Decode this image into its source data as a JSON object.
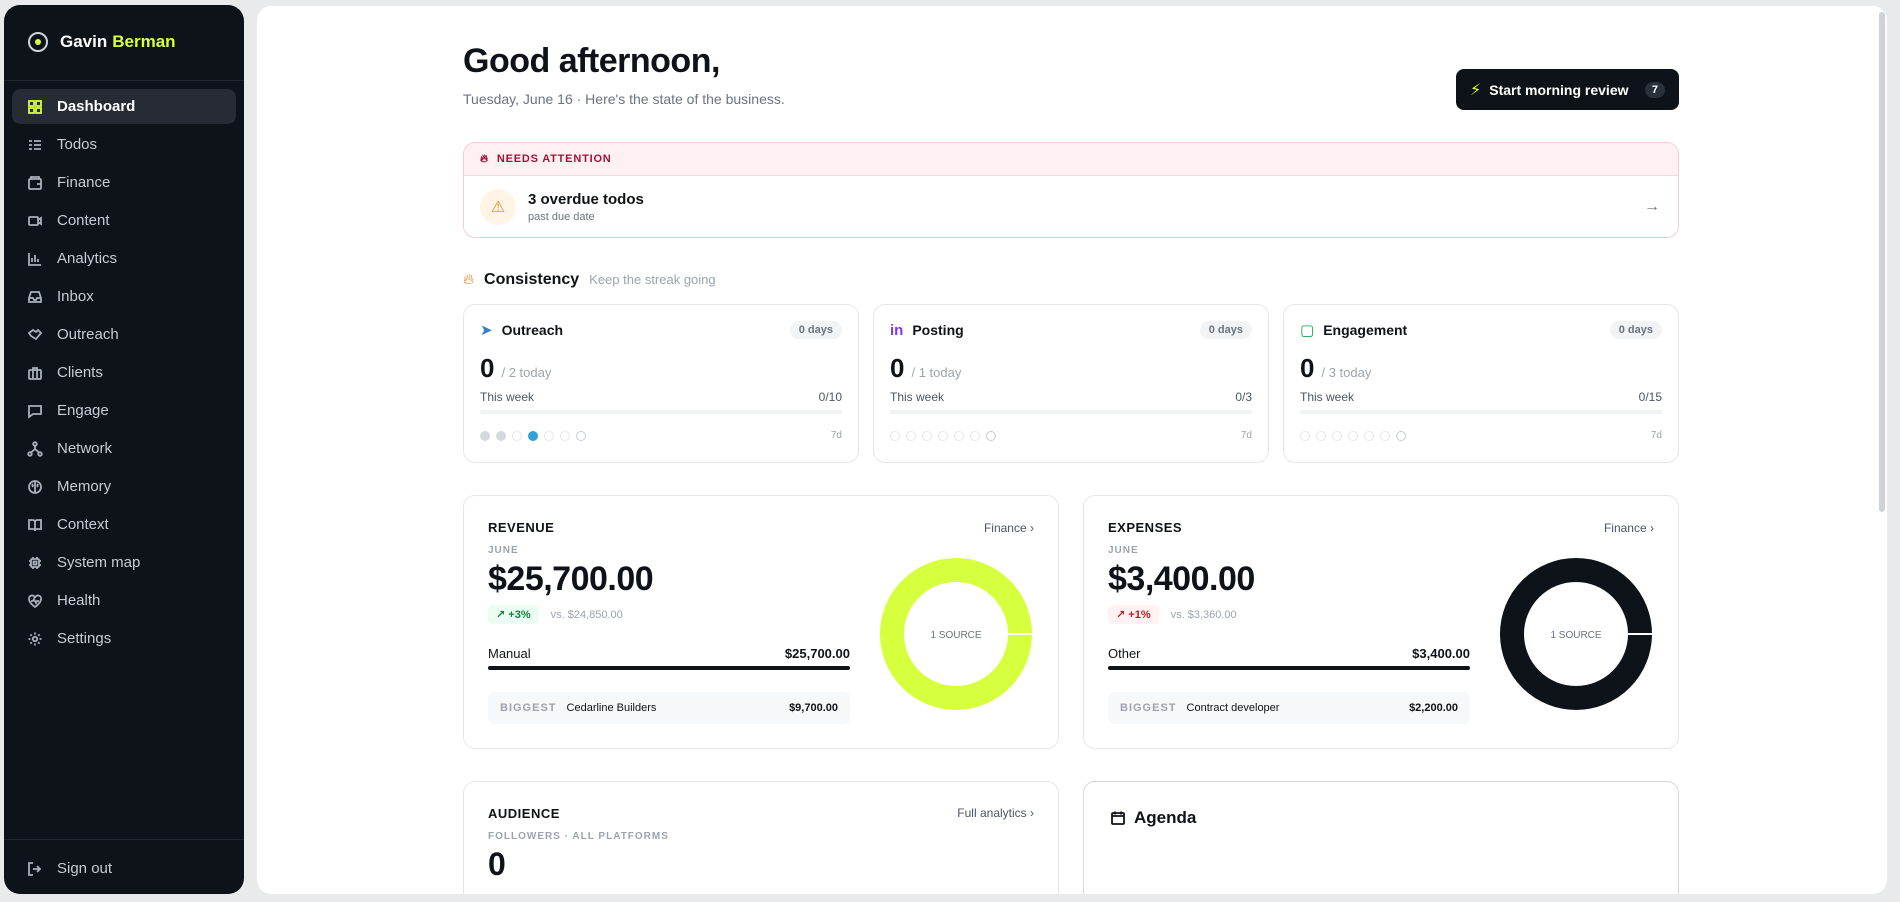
{
  "brand": {
    "first": "Gavin",
    "last": "Berman"
  },
  "nav": [
    {
      "label": "Dashboard",
      "icon": "grid-icon",
      "active": true
    },
    {
      "label": "Todos",
      "icon": "list-check-icon"
    },
    {
      "label": "Finance",
      "icon": "wallet-icon"
    },
    {
      "label": "Content",
      "icon": "video-icon"
    },
    {
      "label": "Analytics",
      "icon": "bar-chart-icon"
    },
    {
      "label": "Inbox",
      "icon": "inbox-icon"
    },
    {
      "label": "Outreach",
      "icon": "handshake-icon"
    },
    {
      "label": "Clients",
      "icon": "briefcase-icon"
    },
    {
      "label": "Engage",
      "icon": "message-square-icon"
    },
    {
      "label": "Network",
      "icon": "network-icon"
    },
    {
      "label": "Memory",
      "icon": "brain-icon"
    },
    {
      "label": "Context",
      "icon": "book-open-icon"
    },
    {
      "label": "System map",
      "icon": "cpu-icon"
    },
    {
      "label": "Health",
      "icon": "heart-pulse-icon"
    },
    {
      "label": "Settings",
      "icon": "gear-icon"
    }
  ],
  "signout": "Sign out",
  "header": {
    "greeting": "Good afternoon,",
    "subtitle": "Tuesday, June 16 · Here's the state of the business.",
    "review_label": "Start morning review",
    "review_count": "7"
  },
  "attention": {
    "label": "NEEDS ATTENTION",
    "title": "3 overdue todos",
    "sub": "past due date"
  },
  "consistency": {
    "title": "Consistency",
    "subtitle": "Keep the streak going",
    "cards": [
      {
        "name": "Outreach",
        "icon": "send-icon",
        "days": "0 days",
        "count": "0",
        "target": "/ 2 today",
        "week_label": "This week",
        "week_value": "0/10",
        "period": "7d",
        "dots": [
          "filled",
          "filled",
          "empty",
          "today",
          "empty",
          "empty",
          "last"
        ]
      },
      {
        "name": "Posting",
        "icon": "linkedin-icon",
        "days": "0 days",
        "count": "0",
        "target": "/ 1 today",
        "week_label": "This week",
        "week_value": "0/3",
        "period": "7d",
        "dots": [
          "empty",
          "empty",
          "empty",
          "empty",
          "empty",
          "empty",
          "last"
        ]
      },
      {
        "name": "Engagement",
        "icon": "message-icon",
        "days": "0 days",
        "count": "0",
        "target": "/ 3 today",
        "week_label": "This week",
        "week_value": "0/15",
        "period": "7d",
        "dots": [
          "empty",
          "empty",
          "empty",
          "empty",
          "empty",
          "empty",
          "last"
        ]
      }
    ]
  },
  "revenue": {
    "title": "REVENUE",
    "link": "Finance",
    "month": "JUNE",
    "amount": "$25,700.00",
    "delta": "+3%",
    "compare": "vs. $24,850.00",
    "category": "Manual",
    "category_value": "$25,700.00",
    "biggest_label": "BIGGEST",
    "biggest_name": "Cedarline Builders",
    "biggest_value": "$9,700.00",
    "donut_label": "1 SOURCE",
    "color": "#d6ff3e"
  },
  "expenses": {
    "title": "EXPENSES",
    "link": "Finance",
    "month": "JUNE",
    "amount": "$3,400.00",
    "delta": "+1%",
    "compare": "vs. $3,360.00",
    "category": "Other",
    "category_value": "$3,400.00",
    "biggest_label": "BIGGEST",
    "biggest_name": "Contract developer",
    "biggest_value": "$2,200.00",
    "donut_label": "1 SOURCE",
    "color": "#0e1219"
  },
  "audience": {
    "title": "AUDIENCE",
    "link": "Full analytics",
    "label": "FOLLOWERS · ALL PLATFORMS",
    "value": "0"
  },
  "agenda": {
    "title": "Agenda"
  }
}
